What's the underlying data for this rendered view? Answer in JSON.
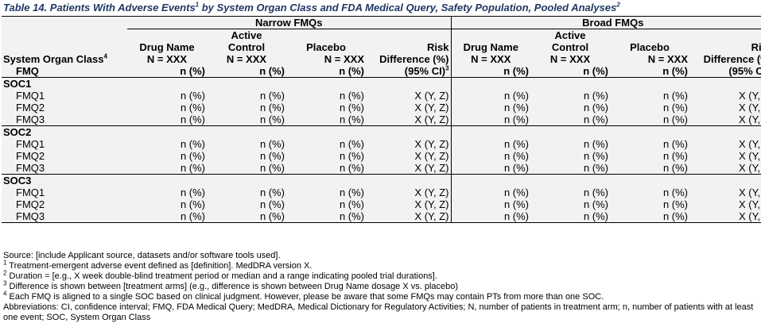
{
  "title": "Table 14. Patients With Adverse Events",
  "title_sup": "1",
  "title_rest": " by System Organ Class and FDA Medical Query, Safety Population, Pooled Analyses",
  "title_sup2": "2",
  "groups": {
    "narrow": "Narrow FMQs",
    "broad": "Broad FMQs"
  },
  "columns": {
    "soc_label": "System Organ Class",
    "soc_sup": "4",
    "fmq_label": "FMQ",
    "drug": "Drug Name",
    "active1": "Active",
    "active2": "Control",
    "placebo": "Placebo",
    "risk": "Risk",
    "risk2": "Difference (%)",
    "n_xxx": "N = XXX",
    "n_pct": "n (%)",
    "ci": "(95% CI)",
    "ci_sup": "3"
  },
  "cells": {
    "npct": "n (%)",
    "risk": "X (Y, Z)"
  },
  "socs": [
    {
      "name": "SOC1",
      "fmqs": [
        "FMQ1",
        "FMQ2",
        "FMQ3"
      ]
    },
    {
      "name": "SOC2",
      "fmqs": [
        "FMQ1",
        "FMQ2",
        "FMQ3"
      ]
    },
    {
      "name": "SOC3",
      "fmqs": [
        "FMQ1",
        "FMQ2",
        "FMQ3"
      ]
    }
  ],
  "footnotes": {
    "source": "Source: [include Applicant source, datasets and/or software tools used].",
    "f1_sup": "1",
    "f1": " Treatment-emergent adverse event defined as [definition]. MedDRA version X.",
    "f2_sup": "2",
    "f2": " Duration = [e.g., X week double-blind treatment period or median and a range indicating pooled trial durations].",
    "f3_sup": "3",
    "f3": " Difference is shown between [treatment arms] (e.g., difference is shown between Drug Name dosage X vs. placebo)",
    "f4_sup": "4",
    "f4": " Each FMQ is aligned to a single SOC based on clinical judgment. However, please be aware that some FMQs may contain PTs from more than one SOC.",
    "abbrev": "Abbreviations: CI, confidence interval; FMQ, FDA Medical Query; MedDRA, Medical Dictionary for Regulatory Activities; N, number of patients in treatment arm; n, number of patients with at least one event; SOC, System Organ Class"
  }
}
